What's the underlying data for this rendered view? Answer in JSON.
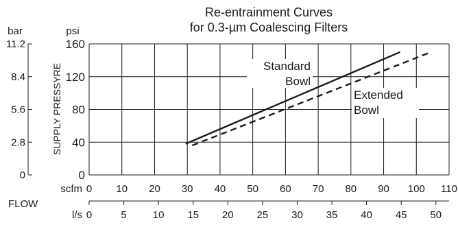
{
  "chart_data": {
    "type": "line",
    "title": "Re-entrainment Curves",
    "subtitle": "for 0.3-µm Coalescing Filters",
    "ylabel": "SUPPLY PRESSYRE",
    "y_primary": {
      "unit": "psi",
      "ylim": [
        0,
        160
      ],
      "ticks": [
        "0",
        "40",
        "80",
        "120",
        "160"
      ]
    },
    "y_secondary": {
      "unit": "bar",
      "ylim": [
        0,
        11.2
      ],
      "ticks": [
        "0",
        "2.8",
        "5.6",
        "8.4",
        "11.2"
      ]
    },
    "xlabel": "FLOW",
    "x_primary": {
      "unit": "scfm",
      "xlim": [
        0,
        110
      ],
      "ticks": [
        "0",
        "10",
        "20",
        "30",
        "40",
        "50",
        "60",
        "70",
        "80",
        "90",
        "100",
        "110"
      ]
    },
    "x_secondary": {
      "unit": "l/s",
      "xlim": [
        0,
        51.9
      ],
      "ticks": [
        "0",
        "5",
        "10",
        "15",
        "20",
        "25",
        "30",
        "35",
        "40",
        "45",
        "50"
      ]
    },
    "grid": true,
    "series": [
      {
        "name": "Standard Bowl",
        "line": "solid",
        "x": [
          29.5,
          95
        ],
        "y": [
          38,
          150
        ]
      },
      {
        "name": "Extended Bowl",
        "line": "dashed",
        "x": [
          31.5,
          104.5
        ],
        "y": [
          36,
          150
        ]
      }
    ],
    "annotations": [
      {
        "label": "Standard",
        "series": "Standard Bowl"
      },
      {
        "label": "Bowl",
        "series": "Standard Bowl"
      },
      {
        "label": "Extended",
        "series": "Extended Bowl"
      },
      {
        "label": "Bowl",
        "series": "Extended Bowl"
      }
    ],
    "colors": {
      "line": "#1a1a1a",
      "grid": "#1a1a1a",
      "background": "#ffffff"
    }
  }
}
